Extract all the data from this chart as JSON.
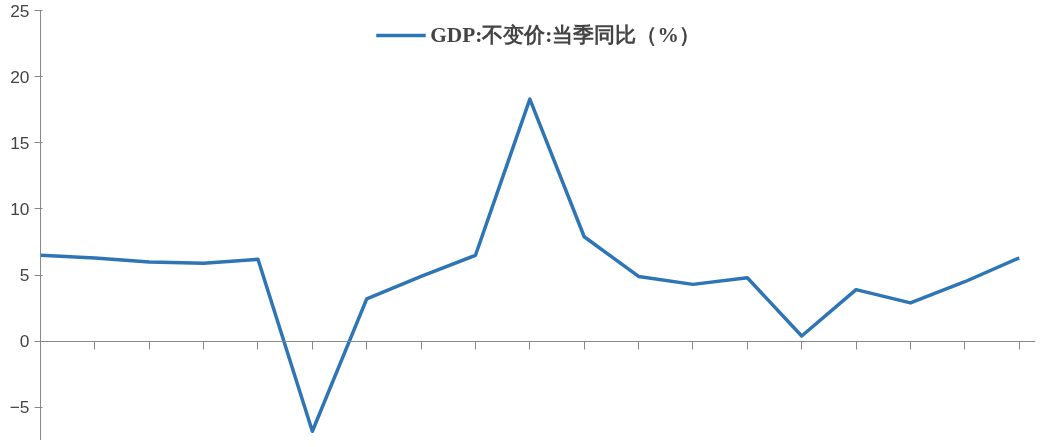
{
  "chart_data": {
    "type": "line",
    "categories": [
      null,
      null,
      null,
      null,
      null,
      null,
      null,
      null,
      null,
      null,
      null,
      null,
      null,
      null,
      null,
      null,
      null,
      null,
      null
    ],
    "series": [
      {
        "name": "GDP:不变价:当季同比（%）",
        "color": "#2e75b6",
        "values": [
          6.5,
          6.3,
          6.0,
          5.9,
          6.2,
          -6.8,
          3.2,
          4.9,
          6.5,
          18.3,
          7.9,
          4.9,
          4.3,
          4.8,
          0.4,
          3.9,
          2.9,
          4.5,
          6.3
        ]
      }
    ],
    "ylim": [
      -7.5,
      25
    ],
    "yticks": [
      -5,
      0,
      5,
      10,
      15,
      20,
      25
    ],
    "legend": "top",
    "tick_labels": "y",
    "marker": "none",
    "line_style": "solid"
  }
}
